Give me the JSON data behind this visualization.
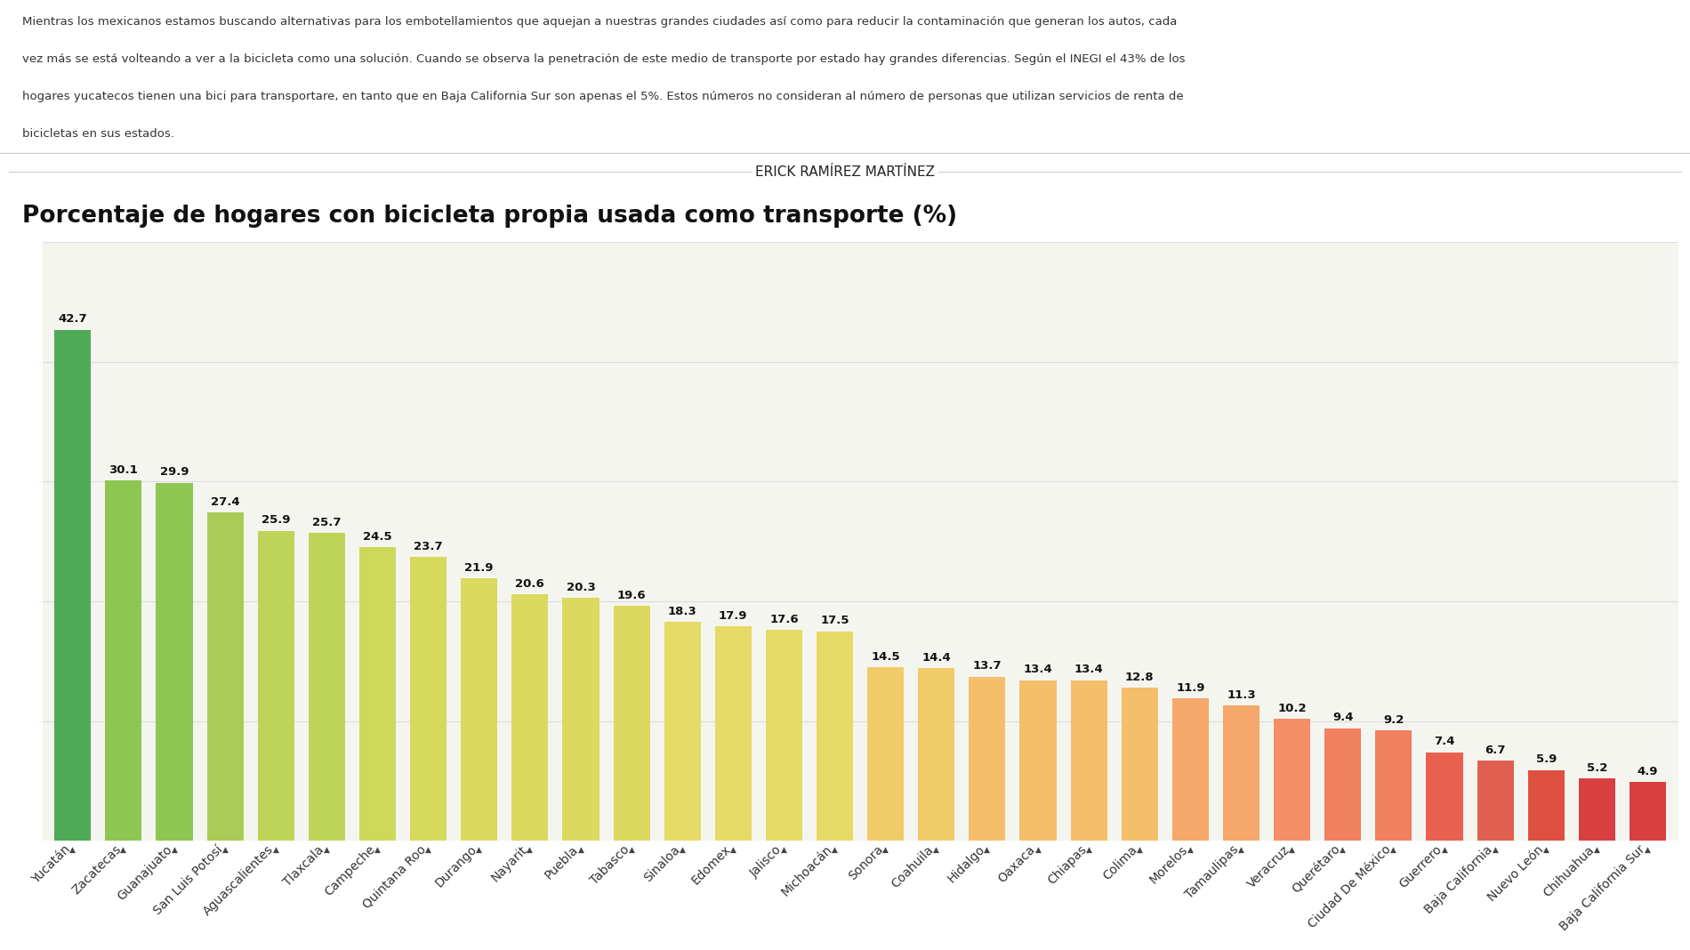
{
  "title": "Porcentaje de hogares con bicicleta propia usada como transporte (%)",
  "author": "ERICK RAMÍREZ MARTÍNEZ",
  "paragraph_lines": [
    "Mientras los mexicanos estamos buscando alternativas para los embotellamientos que aquejan a nuestras grandes ciudades así como para reducir la contaminación que generan los autos, cada",
    "vez más se está volteando a ver a la bicicleta como una solución. Cuando se observa la penetración de este medio de transporte por estado hay grandes diferencias. Según el INEGI el 43% de los",
    "hogares yucatecos tienen una bici para transportare, en tanto que en Baja California Sur son apenas el 5%. Estos números no consideran al número de personas que utilizan servicios de renta de",
    "bicicletas en sus estados."
  ],
  "categories": [
    "Yucatán",
    "Zacatecas",
    "Guanajuato",
    "San Luis Potosí",
    "Aguascalientes",
    "Tlaxcala",
    "Campeche",
    "Quintana Roo",
    "Durango",
    "Nayarit",
    "Puebla",
    "Tabasco",
    "Sinaloa",
    "Edomex",
    "Jalisco",
    "Michoacán",
    "Sonora",
    "Coahuila",
    "Hidalgo",
    "Oaxaca",
    "Chiapas",
    "Colima",
    "Morelos",
    "Tamaulipas",
    "Veracruz",
    "Querétaro",
    "Ciudad De México",
    "Guerrero",
    "Baja California",
    "Nuevo León",
    "Chihuahua",
    "Baja California Sur"
  ],
  "values": [
    42.7,
    30.1,
    29.9,
    27.4,
    25.9,
    25.7,
    24.5,
    23.7,
    21.9,
    20.6,
    20.3,
    19.6,
    18.3,
    17.9,
    17.6,
    17.5,
    14.5,
    14.4,
    13.7,
    13.4,
    13.4,
    12.8,
    11.9,
    11.3,
    10.2,
    9.4,
    9.2,
    7.4,
    6.7,
    5.9,
    5.2,
    4.9
  ],
  "bar_colors": [
    "#4faa55",
    "#8dc653",
    "#8dc653",
    "#a8cc55",
    "#bdd458",
    "#bdd458",
    "#cdd95b",
    "#d5da5c",
    "#dbd95f",
    "#dbd95f",
    "#dbd95f",
    "#dbd95f",
    "#e5da65",
    "#e5da65",
    "#e5da65",
    "#e5da65",
    "#f0cb68",
    "#f0cb68",
    "#f5be6a",
    "#f5be6a",
    "#f5be6a",
    "#f5be6a",
    "#f5a86a",
    "#f5a86a",
    "#f59066",
    "#f08060",
    "#f08060",
    "#e86050",
    "#e06050",
    "#e05040",
    "#d84040",
    "#d84040"
  ],
  "background_color": "#f5f5f0",
  "grid_color": "#dddddd",
  "ylim": [
    0,
    50
  ],
  "title_fontsize": 19,
  "label_fontsize": 10,
  "value_fontsize": 9.5,
  "paragraph_fontsize": 9.5
}
